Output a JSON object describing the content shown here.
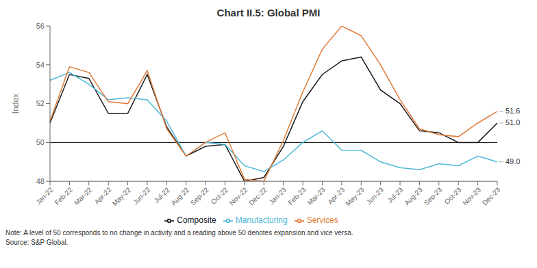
{
  "chart_data": {
    "type": "line",
    "title": "Chart II.5: Global PMI",
    "ylabel": "Index",
    "categories": [
      "Jan-22",
      "Feb-22",
      "Mar-22",
      "Apr-22",
      "May-22",
      "Jun-22",
      "Jul-22",
      "Aug-22",
      "Sep-22",
      "Oct-22",
      "Nov-22",
      "Dec-22",
      "Jan-23",
      "Feb-23",
      "Mar-23",
      "Apr-23",
      "May-23",
      "Jun-23",
      "Jul-23",
      "Aug-23",
      "Sep-23",
      "Oct-23",
      "Nov-23",
      "Dec-23"
    ],
    "series": [
      {
        "name": "Composite",
        "color": "#1a1a1a",
        "values": [
          51.0,
          53.5,
          53.3,
          51.5,
          51.5,
          53.5,
          50.8,
          49.3,
          49.8,
          49.9,
          48.0,
          48.2,
          49.8,
          52.1,
          53.5,
          54.2,
          54.4,
          52.7,
          52.0,
          50.6,
          50.5,
          50.0,
          50.0,
          51.0
        ]
      },
      {
        "name": "Manufacturing",
        "color": "#4db8d8",
        "values": [
          53.2,
          53.6,
          53.0,
          52.2,
          52.3,
          52.2,
          51.1,
          49.3,
          50.0,
          49.9,
          48.8,
          48.5,
          49.1,
          50.0,
          50.6,
          49.6,
          49.6,
          49.0,
          48.7,
          48.6,
          48.9,
          48.8,
          49.3,
          49.0
        ]
      },
      {
        "name": "Services",
        "color": "#e07b39",
        "values": [
          51.1,
          53.9,
          53.6,
          52.1,
          52.0,
          53.7,
          50.7,
          49.3,
          50.0,
          50.5,
          48.1,
          48.0,
          50.1,
          52.6,
          54.8,
          56.0,
          55.5,
          54.0,
          52.2,
          50.7,
          50.4,
          50.3,
          51.0,
          51.6
        ]
      }
    ],
    "ylim": [
      48,
      56
    ],
    "yticks": [
      48,
      50,
      52,
      54,
      56
    ],
    "hline": 50,
    "annotations": [
      {
        "text": "51.6",
        "series": "Services",
        "x": "Dec-23",
        "y": 51.6
      },
      {
        "text": "51.0",
        "series": "Composite",
        "x": "Dec-23",
        "y": 51.0
      },
      {
        "text": "49.0",
        "series": "Manufacturing",
        "x": "Dec-23",
        "y": 49.0
      }
    ],
    "note": "Note: A level of 50 corresponds to no change in activity and a reading above 50 denotes expansion and vice versa.",
    "source": "Source: S&P Global.",
    "grid": false,
    "legend": "bottom"
  }
}
